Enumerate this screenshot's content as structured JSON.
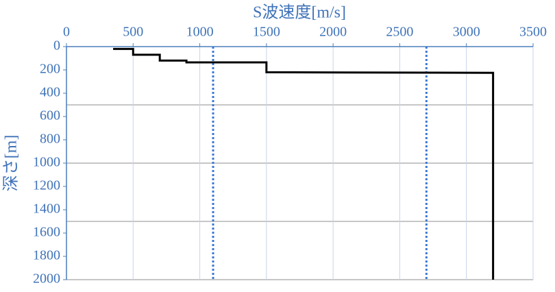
{
  "chart_data": {
    "type": "line",
    "x_label": "S波速度[m/s]",
    "y_label": "深さ[m]",
    "series": [
      {
        "color": "#000000",
        "x": [
          350,
          500,
          500,
          700,
          700,
          900,
          900,
          1500,
          1500,
          2100,
          3200,
          3200
        ],
        "values": [
          20,
          20,
          70,
          70,
          120,
          120,
          135,
          135,
          220,
          222,
          225,
          2000
        ]
      }
    ],
    "reference_lines": {
      "color": "#3a78d4",
      "x": [
        1100,
        2700
      ]
    },
    "xlim": [
      0,
      3500
    ],
    "xticks": [
      0,
      500,
      1000,
      1500,
      2000,
      2500,
      3000,
      3500
    ],
    "ylim": [
      0,
      2000
    ],
    "yticks": [
      0,
      200,
      400,
      600,
      800,
      1000,
      1200,
      1400,
      1600,
      1800,
      2000
    ],
    "y_inverted": true,
    "ygrid": [
      500,
      1000,
      1500,
      2000
    ],
    "xgrid": true
  }
}
